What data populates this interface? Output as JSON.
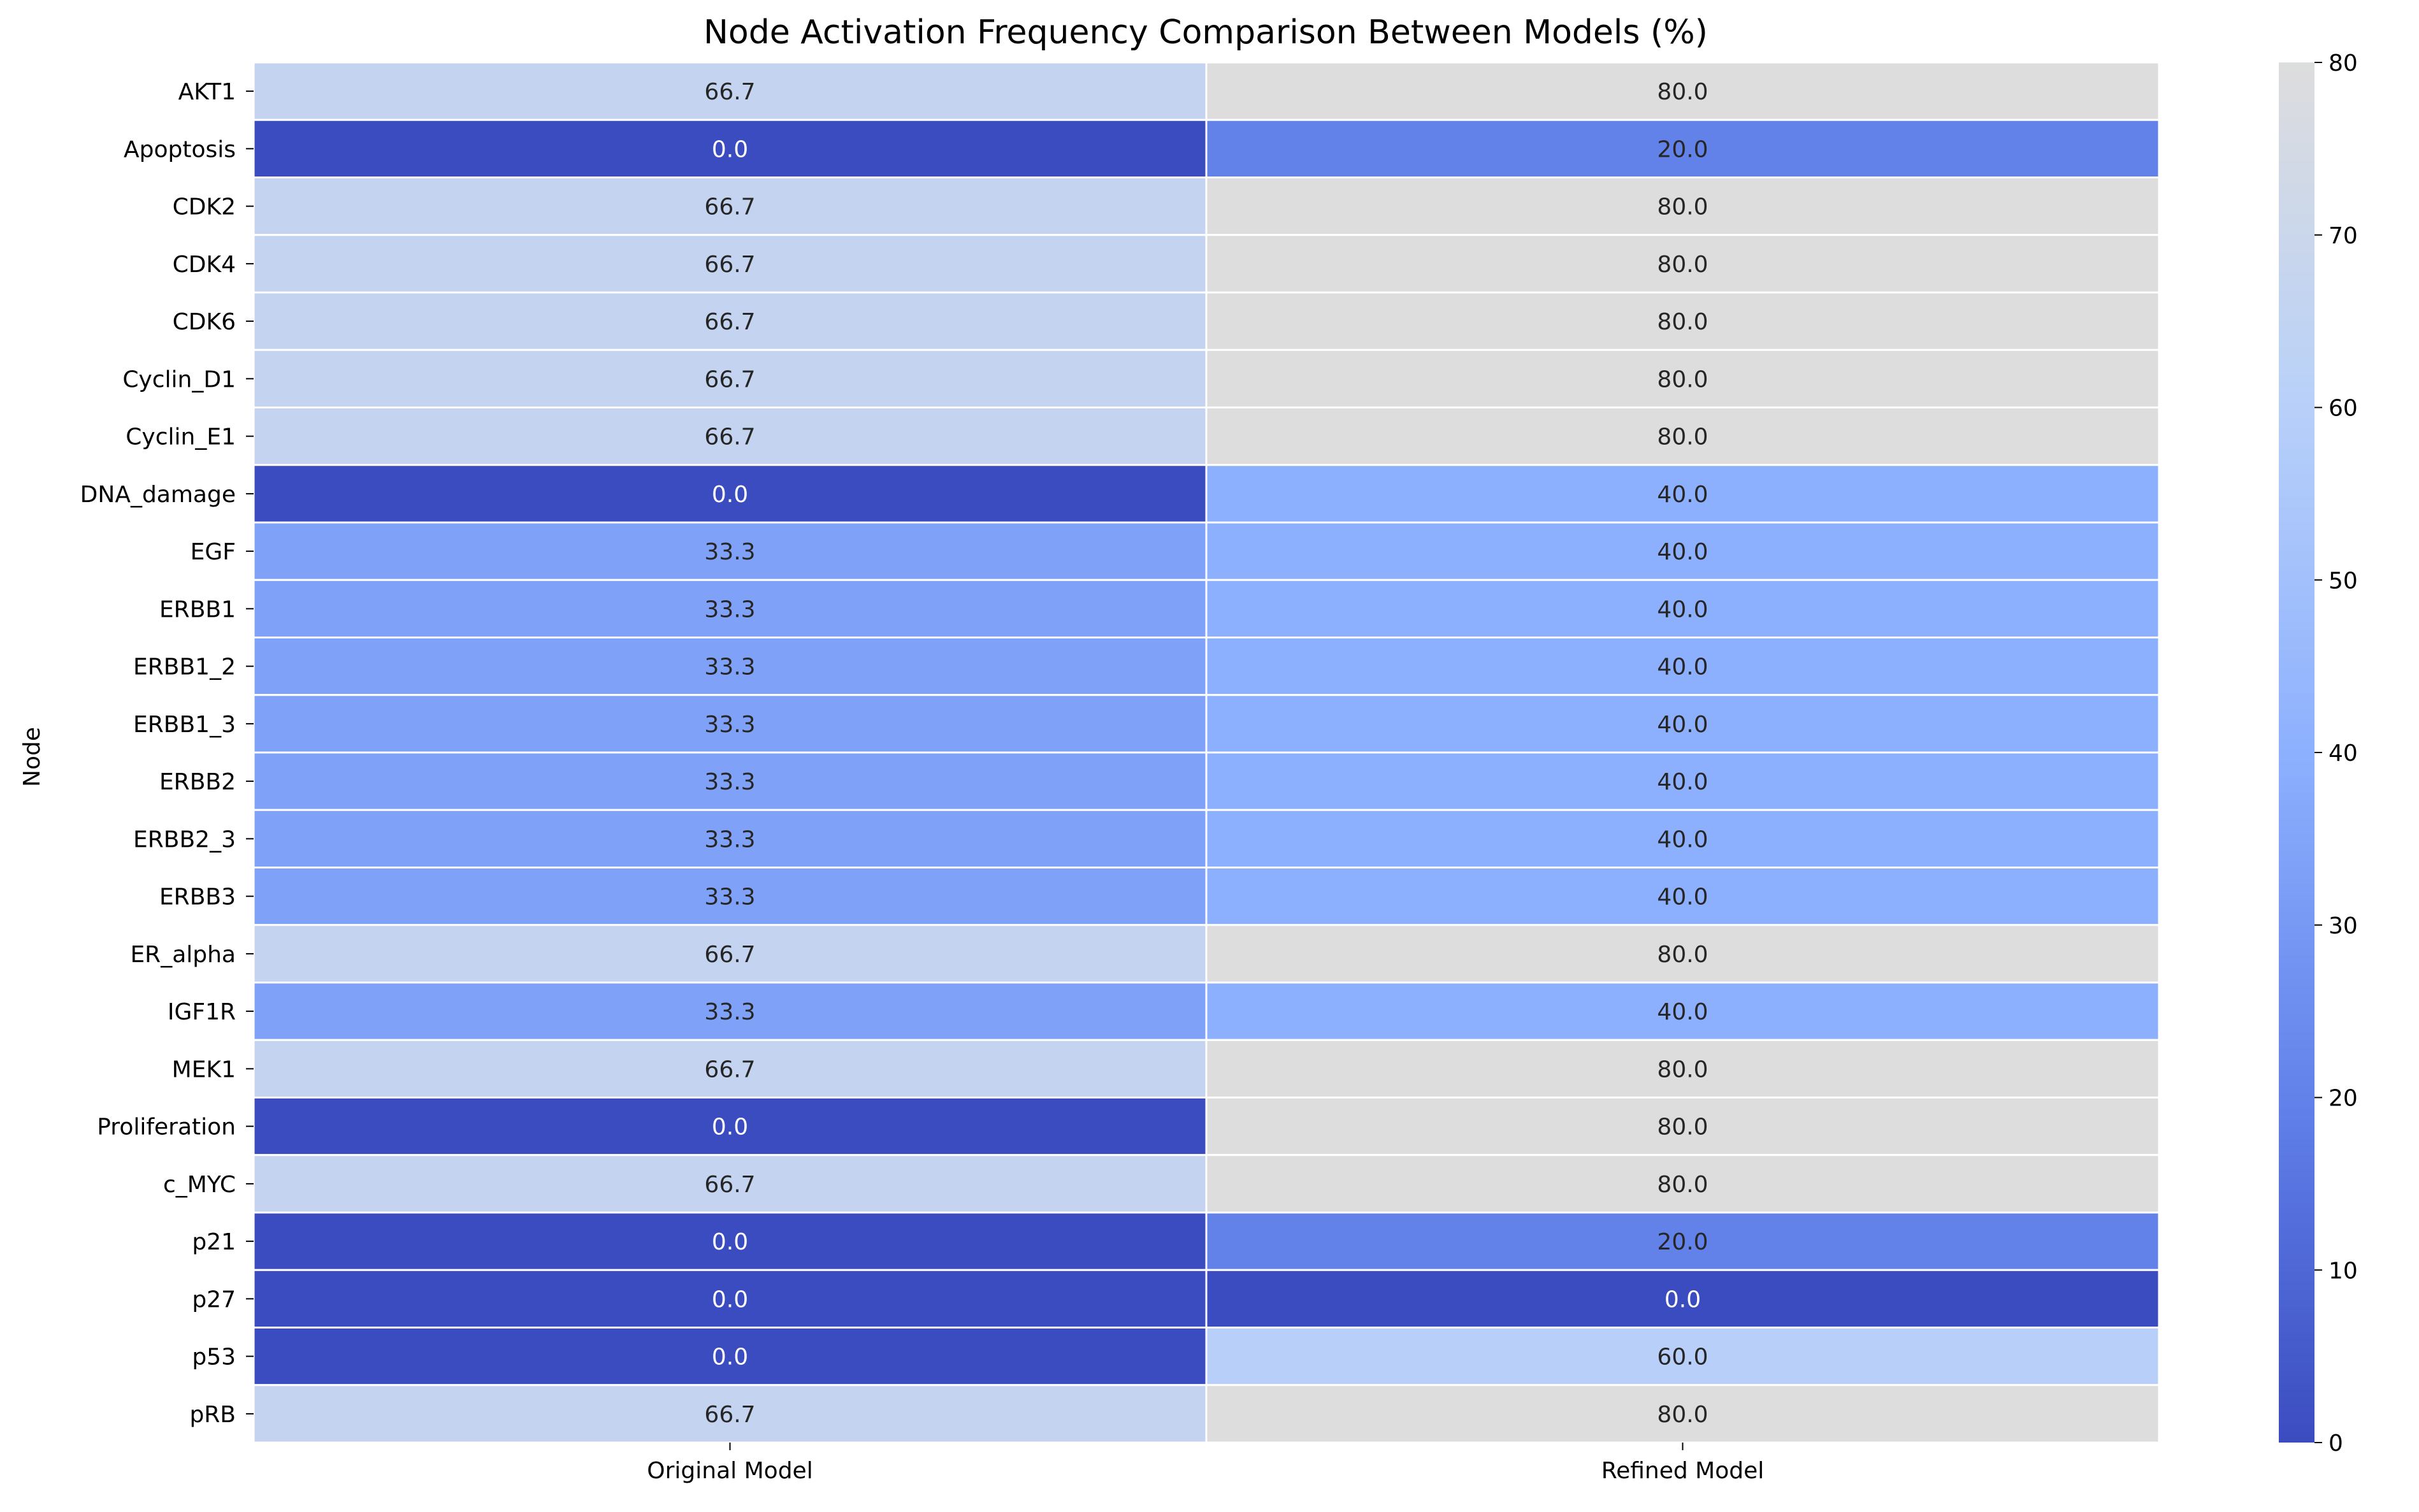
{
  "chart_data": {
    "type": "heatmap",
    "title": "Node Activation Frequency Comparison Between Models (%)",
    "xlabel": "",
    "ylabel": "Node",
    "columns": [
      "Original Model",
      "Refined Model"
    ],
    "rows": [
      "AKT1",
      "Apoptosis",
      "CDK2",
      "CDK4",
      "CDK6",
      "Cyclin_D1",
      "Cyclin_E1",
      "DNA_damage",
      "EGF",
      "ERBB1",
      "ERBB1_2",
      "ERBB1_3",
      "ERBB2",
      "ERBB2_3",
      "ERBB3",
      "ER_alpha",
      "IGF1R",
      "MEK1",
      "Proliferation",
      "c_MYC",
      "p21",
      "p27",
      "p53",
      "pRB"
    ],
    "values": [
      [
        66.7,
        80.0
      ],
      [
        0.0,
        20.0
      ],
      [
        66.7,
        80.0
      ],
      [
        66.7,
        80.0
      ],
      [
        66.7,
        80.0
      ],
      [
        66.7,
        80.0
      ],
      [
        66.7,
        80.0
      ],
      [
        0.0,
        40.0
      ],
      [
        33.3,
        40.0
      ],
      [
        33.3,
        40.0
      ],
      [
        33.3,
        40.0
      ],
      [
        33.3,
        40.0
      ],
      [
        33.3,
        40.0
      ],
      [
        33.3,
        40.0
      ],
      [
        33.3,
        40.0
      ],
      [
        66.7,
        80.0
      ],
      [
        33.3,
        40.0
      ],
      [
        66.7,
        80.0
      ],
      [
        0.0,
        80.0
      ],
      [
        66.7,
        80.0
      ],
      [
        0.0,
        20.0
      ],
      [
        0.0,
        0.0
      ],
      [
        0.0,
        60.0
      ],
      [
        66.7,
        80.0
      ]
    ],
    "colorbar": {
      "min": 0,
      "max": 80,
      "ticks": [
        0,
        10,
        20,
        30,
        40,
        50,
        60,
        70,
        80
      ],
      "colormap": "coolwarm"
    },
    "value_format": "one decimal",
    "annotations": true,
    "grid": false
  }
}
